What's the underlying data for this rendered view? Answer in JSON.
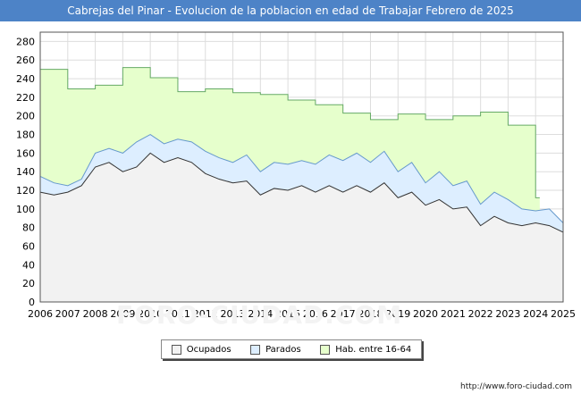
{
  "title": "Cabrejas del Pinar - Evolucion de la poblacion en edad de Trabajar Febrero de 2025",
  "watermark": "FORO-CIUDAD.COM",
  "url": "http://www.foro-ciudad.com",
  "colors": {
    "title_bg": "#4d83c7",
    "ocupados_fill": "#f2f2f2",
    "parados_fill": "#ddeeff",
    "hab_fill": "#e6ffcc",
    "hab_line": "#66aa66",
    "parados_line": "#6699cc",
    "ocupados_line": "#333333",
    "grid": "#dddddd"
  },
  "chart_data": {
    "type": "area",
    "title": "Cabrejas del Pinar - Evolucion de la poblacion en edad de Trabajar Febrero de 2025",
    "xlabel": "",
    "ylabel": "",
    "xlim": [
      2006,
      2025
    ],
    "ylim": [
      0,
      290
    ],
    "yticks": [
      0,
      20,
      40,
      60,
      80,
      100,
      120,
      140,
      160,
      180,
      200,
      220,
      240,
      260,
      280
    ],
    "xticks": [
      2006,
      2007,
      2008,
      2009,
      2010,
      2011,
      2012,
      2013,
      2014,
      2015,
      2016,
      2017,
      2018,
      2019,
      2020,
      2021,
      2022,
      2023,
      2024,
      2025
    ],
    "grid": true,
    "legend_position": "bottom-center",
    "series": [
      {
        "name": "Hab. entre 16-64",
        "x": [
          2006,
          2007,
          2008,
          2009,
          2010,
          2011,
          2012,
          2013,
          2014,
          2015,
          2016,
          2017,
          2018,
          2019,
          2020,
          2021,
          2022,
          2023,
          2024
        ],
        "values": [
          250,
          229,
          233,
          252,
          241,
          226,
          229,
          225,
          223,
          217,
          212,
          203,
          196,
          202,
          196,
          200,
          204,
          190,
          112
        ]
      },
      {
        "name": "Parados",
        "x": [
          2006,
          2006.5,
          2007,
          2007.5,
          2008,
          2008.5,
          2009,
          2009.5,
          2010,
          2010.5,
          2011,
          2011.5,
          2012,
          2012.5,
          2013,
          2013.5,
          2014,
          2014.5,
          2015,
          2015.5,
          2016,
          2016.5,
          2017,
          2017.5,
          2018,
          2018.5,
          2019,
          2019.5,
          2020,
          2020.5,
          2021,
          2021.5,
          2022,
          2022.5,
          2023,
          2023.5,
          2024,
          2024.5,
          2025
        ],
        "values": [
          135,
          128,
          125,
          132,
          160,
          165,
          160,
          172,
          180,
          170,
          175,
          172,
          162,
          155,
          150,
          158,
          140,
          150,
          148,
          152,
          148,
          158,
          152,
          160,
          150,
          162,
          140,
          150,
          128,
          140,
          125,
          130,
          105,
          118,
          110,
          100,
          98,
          100,
          85
        ]
      },
      {
        "name": "Ocupados",
        "x": [
          2006,
          2006.5,
          2007,
          2007.5,
          2008,
          2008.5,
          2009,
          2009.5,
          2010,
          2010.5,
          2011,
          2011.5,
          2012,
          2012.5,
          2013,
          2013.5,
          2014,
          2014.5,
          2015,
          2015.5,
          2016,
          2016.5,
          2017,
          2017.5,
          2018,
          2018.5,
          2019,
          2019.5,
          2020,
          2020.5,
          2021,
          2021.5,
          2022,
          2022.5,
          2023,
          2023.5,
          2024,
          2024.5,
          2025
        ],
        "values": [
          118,
          115,
          118,
          125,
          145,
          150,
          140,
          145,
          160,
          150,
          155,
          150,
          138,
          132,
          128,
          130,
          115,
          122,
          120,
          125,
          118,
          125,
          118,
          125,
          118,
          128,
          112,
          118,
          104,
          110,
          100,
          102,
          82,
          92,
          85,
          82,
          85,
          82,
          75
        ]
      }
    ]
  },
  "legend": {
    "ocupados": "Ocupados",
    "parados": "Parados",
    "hab": "Hab. entre 16-64"
  }
}
